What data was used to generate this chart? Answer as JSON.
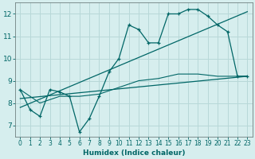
{
  "xlabel": "Humidex (Indice chaleur)",
  "bg_color": "#d6eeee",
  "grid_color": "#b8d8d8",
  "line_color": "#006666",
  "xlim": [
    -0.5,
    23.5
  ],
  "ylim": [
    6.5,
    12.5
  ],
  "xticks": [
    0,
    1,
    2,
    3,
    4,
    5,
    6,
    7,
    8,
    9,
    10,
    11,
    12,
    13,
    14,
    15,
    16,
    17,
    18,
    19,
    20,
    21,
    22,
    23
  ],
  "yticks": [
    7,
    8,
    9,
    10,
    11,
    12
  ],
  "series1_x": [
    0,
    1,
    2,
    3,
    4,
    5,
    6,
    7,
    8,
    9,
    10,
    11,
    12,
    13,
    14,
    15,
    16,
    17,
    18,
    19,
    20,
    21,
    22,
    23
  ],
  "series1_y": [
    8.6,
    7.7,
    7.4,
    8.6,
    8.5,
    8.3,
    6.7,
    7.3,
    8.3,
    9.4,
    10.0,
    11.5,
    11.3,
    10.7,
    10.7,
    12.0,
    12.0,
    12.2,
    12.2,
    11.9,
    11.5,
    11.2,
    9.2,
    9.2
  ],
  "trend1_x": [
    0,
    23
  ],
  "trend1_y": [
    8.2,
    9.2
  ],
  "trend2_x": [
    0,
    23
  ],
  "trend2_y": [
    7.8,
    12.1
  ],
  "avg_x": [
    0,
    2,
    4,
    6,
    8,
    10,
    12,
    14,
    16,
    18,
    20,
    22,
    23
  ],
  "avg_y": [
    8.6,
    8.0,
    8.3,
    8.3,
    8.4,
    8.7,
    9.0,
    9.1,
    9.3,
    9.3,
    9.2,
    9.2,
    9.2
  ]
}
